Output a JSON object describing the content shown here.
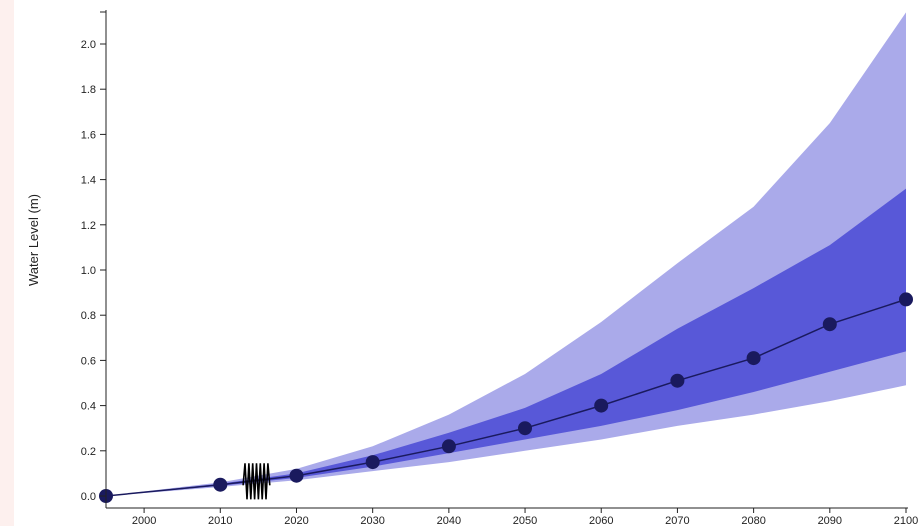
{
  "chart_data": {
    "type": "line",
    "ylabel": "Water Level (m)",
    "xlabel": "",
    "xlim": [
      1995,
      2100
    ],
    "ylim": [
      -0.02,
      2.15
    ],
    "x_ticks": [
      2000,
      2010,
      2020,
      2030,
      2040,
      2050,
      2060,
      2070,
      2080,
      2090,
      2100
    ],
    "y_ticks": [
      0.0,
      0.2,
      0.4,
      0.6,
      0.8,
      1.0,
      1.2,
      1.4,
      1.6,
      1.8,
      2.0
    ],
    "y_tick_labels": [
      "0.0",
      "0.2",
      "0.4",
      "0.6",
      "0.8",
      "1.0",
      "1.2",
      "1.4",
      "1.6",
      "1.8",
      "2.0"
    ],
    "grid": false,
    "series": [
      {
        "color": "#1a1a5e",
        "x": [
          1995,
          2010,
          2020,
          2030,
          2040,
          2050,
          2060,
          2070,
          2080,
          2090,
          2100
        ],
        "y": [
          0.0,
          0.05,
          0.09,
          0.15,
          0.22,
          0.3,
          0.4,
          0.51,
          0.61,
          0.76,
          0.87
        ]
      }
    ],
    "bands": [
      {
        "color": "#aaaaea",
        "x": [
          1995,
          2010,
          2020,
          2030,
          2040,
          2050,
          2060,
          2070,
          2080,
          2090,
          2100
        ],
        "lower": [
          0.0,
          0.04,
          0.07,
          0.11,
          0.15,
          0.2,
          0.25,
          0.31,
          0.36,
          0.42,
          0.49
        ],
        "upper": [
          0.0,
          0.06,
          0.12,
          0.22,
          0.36,
          0.54,
          0.77,
          1.03,
          1.28,
          1.65,
          2.14
        ]
      },
      {
        "color": "#5858d8",
        "x": [
          1995,
          2010,
          2020,
          2030,
          2040,
          2050,
          2060,
          2070,
          2080,
          2090,
          2100
        ],
        "lower": [
          0.0,
          0.045,
          0.08,
          0.13,
          0.19,
          0.25,
          0.31,
          0.38,
          0.46,
          0.55,
          0.64
        ],
        "upper": [
          0.0,
          0.055,
          0.1,
          0.18,
          0.28,
          0.39,
          0.54,
          0.74,
          0.92,
          1.11,
          1.36
        ]
      }
    ],
    "observed_squiggle": {
      "color": "#000000",
      "x_range": [
        2013,
        2016.5
      ]
    }
  },
  "colors": {
    "axis": "#222222",
    "line": "#1a1a5e",
    "marker": "#1a1a5e",
    "background": "#ffffff",
    "left_strip": "#fdf0ee"
  }
}
